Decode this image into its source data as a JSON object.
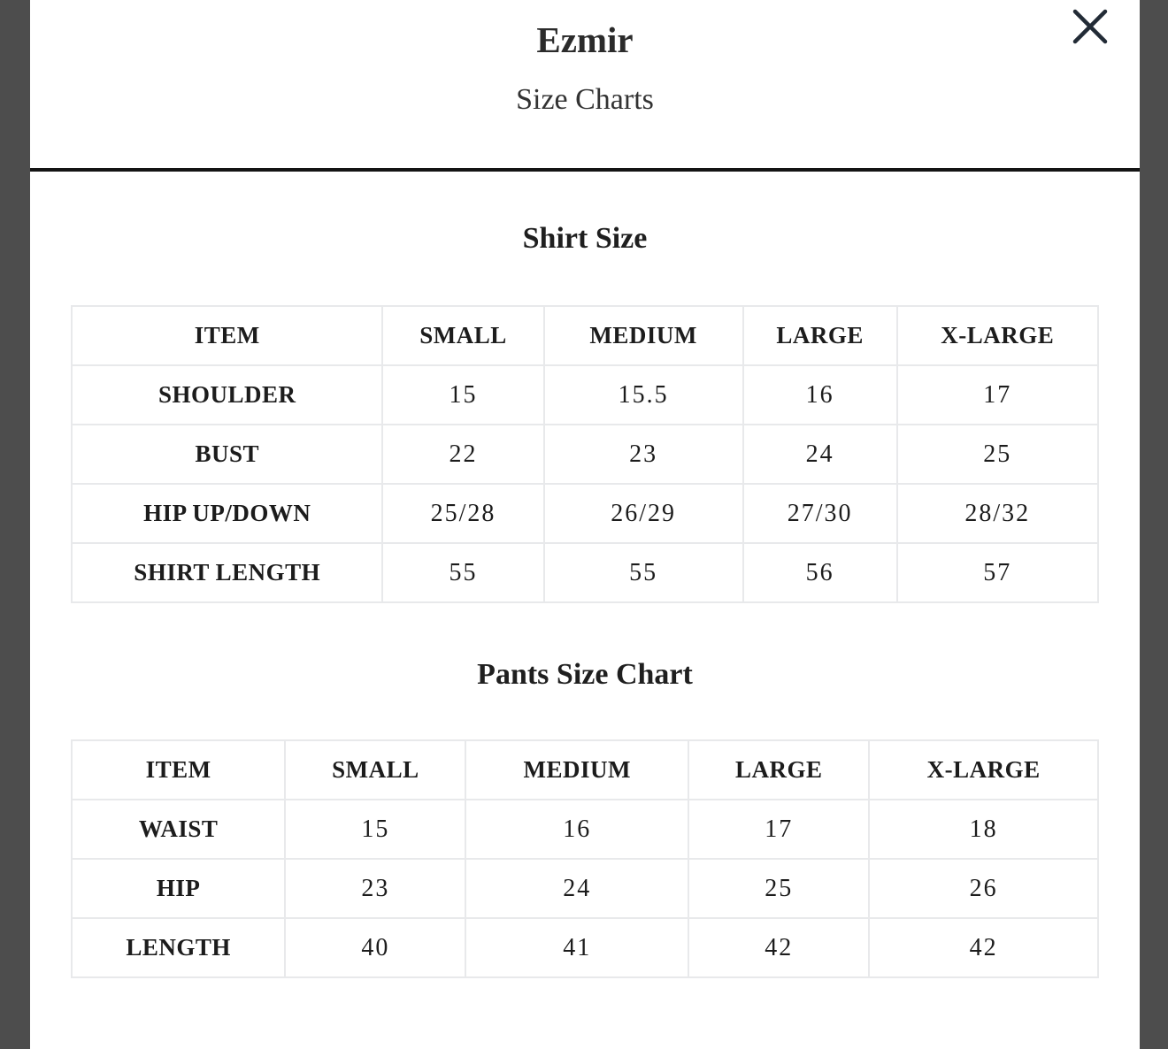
{
  "header": {
    "brand": "Ezmir",
    "subtitle": "Size Charts"
  },
  "icons": {
    "close": "✕"
  },
  "colors": {
    "backdrop": "#4d4d4d",
    "modal_background": "#ffffff",
    "divider": "#141414",
    "table_border": "#e8e9eb",
    "text": "#1c1c1c",
    "close_icon": "#222b36"
  },
  "sections": [
    {
      "title": "Shirt Size",
      "columns": [
        "ITEM",
        "SMALL",
        "MEDIUM",
        "LARGE",
        "X-LARGE"
      ],
      "rows": [
        [
          "SHOULDER",
          "15",
          "15.5",
          "16",
          "17"
        ],
        [
          "BUST",
          "22",
          "23",
          "24",
          "25"
        ],
        [
          "HIP UP/DOWN",
          "25/28",
          "26/29",
          "27/30",
          "28/32"
        ],
        [
          "SHIRT LENGTH",
          "55",
          "55",
          "56",
          "57"
        ]
      ]
    },
    {
      "title": "Pants Size Chart",
      "columns": [
        "ITEM",
        "SMALL",
        "MEDIUM",
        "LARGE",
        "X-LARGE"
      ],
      "rows": [
        [
          "WAIST",
          "15",
          "16",
          "17",
          "18"
        ],
        [
          "HIP",
          "23",
          "24",
          "25",
          "26"
        ],
        [
          "LENGTH",
          "40",
          "41",
          "42",
          "42"
        ]
      ]
    }
  ]
}
